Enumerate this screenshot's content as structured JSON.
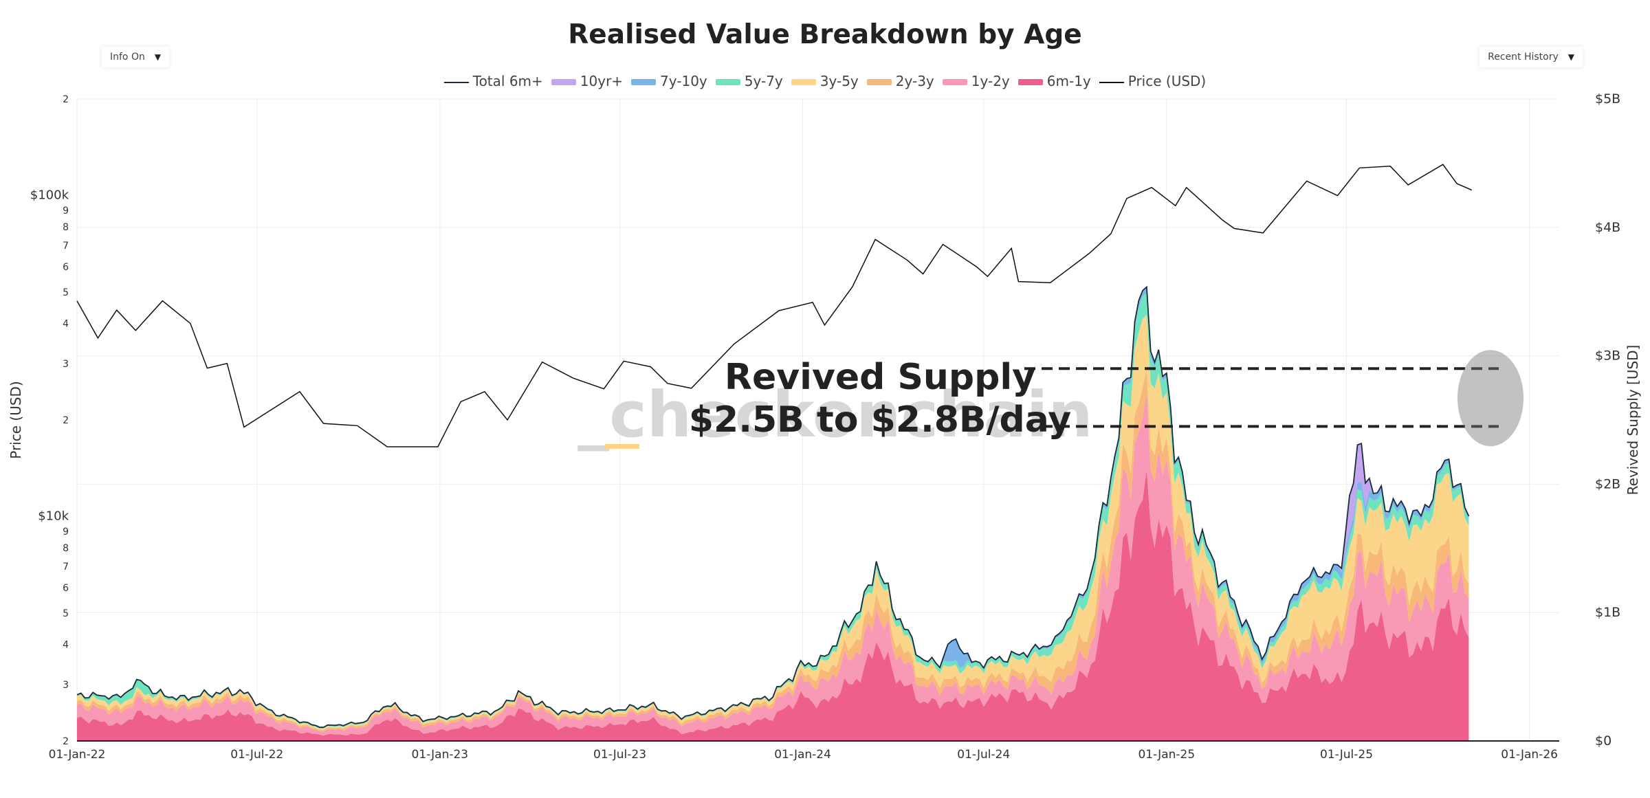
{
  "title": "Realised Value Breakdown by Age",
  "controls": {
    "info_dropdown": "Info On",
    "range_dropdown": "Recent History",
    "arrow": "▼"
  },
  "watermark": "_checkonchain",
  "annotation": {
    "line1": "Revived Supply",
    "line2": "$2.5B to $2.8B/day"
  },
  "colors": {
    "10yr+": "#c3a6f0",
    "7y-10y": "#7ab4ea",
    "5y-7y": "#6fe3c0",
    "3y-5y": "#fbd68a",
    "2y-3y": "#f8b87a",
    "1y-2y": "#f899b6",
    "6m-1y": "#ee5f8c",
    "total": "#1a2a3a",
    "price": "#111111"
  },
  "chart_data": {
    "type": "area",
    "stacked": true,
    "x_ticks": [
      "01-Jan-22",
      "01-Jul-22",
      "01-Jan-23",
      "01-Jul-23",
      "01-Jan-24",
      "01-Jul-24",
      "01-Jan-25",
      "01-Jul-25",
      "01-Jan-26"
    ],
    "x_range": [
      "2022-01-01",
      "2026-01-31"
    ],
    "y_left": {
      "label": "Price (USD)",
      "scale": "log",
      "range": [
        2000,
        200000
      ],
      "tick_labels": [
        {
          "v": 2000,
          "t": "2"
        },
        {
          "v": 3000,
          "t": "3"
        },
        {
          "v": 4000,
          "t": "4"
        },
        {
          "v": 5000,
          "t": "5"
        },
        {
          "v": 6000,
          "t": "6"
        },
        {
          "v": 7000,
          "t": "7"
        },
        {
          "v": 8000,
          "t": "8"
        },
        {
          "v": 9000,
          "t": "9"
        },
        {
          "v": 10000,
          "t": "$10k"
        },
        {
          "v": 20000,
          "t": "2"
        },
        {
          "v": 30000,
          "t": "3"
        },
        {
          "v": 40000,
          "t": "4"
        },
        {
          "v": 50000,
          "t": "5"
        },
        {
          "v": 60000,
          "t": "6"
        },
        {
          "v": 70000,
          "t": "7"
        },
        {
          "v": 80000,
          "t": "8"
        },
        {
          "v": 90000,
          "t": "9"
        },
        {
          "v": 100000,
          "t": "$100k"
        },
        {
          "v": 200000,
          "t": "2"
        }
      ]
    },
    "y_right": {
      "label": "Revived Supply [USD]",
      "range": [
        0,
        5
      ],
      "unit": "B",
      "tick_labels": [
        "$0",
        "$1B",
        "$2B",
        "$3B",
        "$4B",
        "$5B"
      ]
    },
    "legend": [
      "Total 6m+",
      "10yr+",
      "7y-10y",
      "5y-7y",
      "3y-5y",
      "2y-3y",
      "1y-2y",
      "6m-1y",
      "Price (USD)"
    ],
    "price": {
      "name": "Price (USD)",
      "points": [
        [
          "2022-01-01",
          47000
        ],
        [
          "2022-01-22",
          36000
        ],
        [
          "2022-02-10",
          44000
        ],
        [
          "2022-03-01",
          38000
        ],
        [
          "2022-03-28",
          47000
        ],
        [
          "2022-04-25",
          40000
        ],
        [
          "2022-05-12",
          29000
        ],
        [
          "2022-06-01",
          30000
        ],
        [
          "2022-06-18",
          19000
        ],
        [
          "2022-07-10",
          21000
        ],
        [
          "2022-08-13",
          24500
        ],
        [
          "2022-09-06",
          19500
        ],
        [
          "2022-10-10",
          19200
        ],
        [
          "2022-11-09",
          16500
        ],
        [
          "2022-12-30",
          16500
        ],
        [
          "2023-01-22",
          22800
        ],
        [
          "2023-02-15",
          24500
        ],
        [
          "2023-03-10",
          20000
        ],
        [
          "2023-04-14",
          30300
        ],
        [
          "2023-05-15",
          27000
        ],
        [
          "2023-06-15",
          25000
        ],
        [
          "2023-07-05",
          30500
        ],
        [
          "2023-08-01",
          29300
        ],
        [
          "2023-08-18",
          26000
        ],
        [
          "2023-09-11",
          25100
        ],
        [
          "2023-10-24",
          34500
        ],
        [
          "2023-12-08",
          43800
        ],
        [
          "2024-01-11",
          46500
        ],
        [
          "2024-01-23",
          39500
        ],
        [
          "2024-02-20",
          52000
        ],
        [
          "2024-03-14",
          73000
        ],
        [
          "2024-04-15",
          63000
        ],
        [
          "2024-05-01",
          57000
        ],
        [
          "2024-05-21",
          70500
        ],
        [
          "2024-06-24",
          60000
        ],
        [
          "2024-07-05",
          56000
        ],
        [
          "2024-07-29",
          68500
        ],
        [
          "2024-08-05",
          54000
        ],
        [
          "2024-09-06",
          53500
        ],
        [
          "2024-10-15",
          66000
        ],
        [
          "2024-11-06",
          76000
        ],
        [
          "2024-11-22",
          98000
        ],
        [
          "2024-12-17",
          106000
        ],
        [
          "2025-01-10",
          93000
        ],
        [
          "2025-01-21",
          106000
        ],
        [
          "2025-02-26",
          84000
        ],
        [
          "2025-03-10",
          79000
        ],
        [
          "2025-04-08",
          76500
        ],
        [
          "2025-05-22",
          111000
        ],
        [
          "2025-06-22",
          100000
        ],
        [
          "2025-07-14",
          122000
        ],
        [
          "2025-08-14",
          123500
        ],
        [
          "2025-09-01",
          108000
        ],
        [
          "2025-10-06",
          125000
        ],
        [
          "2025-10-20",
          109000
        ],
        [
          "2025-11-04",
          104000
        ]
      ]
    },
    "series": [
      {
        "name": "6m-1y",
        "points": [
          [
            "2022-01-01",
            0.18
          ],
          [
            "2022-02-15",
            0.12
          ],
          [
            "2022-03-01",
            0.22
          ],
          [
            "2022-04-15",
            0.15
          ],
          [
            "2022-05-20",
            0.2
          ],
          [
            "2022-06-15",
            0.22
          ],
          [
            "2022-07-15",
            0.1
          ],
          [
            "2022-09-01",
            0.05
          ],
          [
            "2022-10-15",
            0.05
          ],
          [
            "2022-11-10",
            0.18
          ],
          [
            "2022-12-15",
            0.06
          ],
          [
            "2023-01-20",
            0.1
          ],
          [
            "2023-03-01",
            0.12
          ],
          [
            "2023-03-20",
            0.25
          ],
          [
            "2023-05-01",
            0.1
          ],
          [
            "2023-06-20",
            0.12
          ],
          [
            "2023-08-01",
            0.17
          ],
          [
            "2023-09-01",
            0.06
          ],
          [
            "2023-10-25",
            0.12
          ],
          [
            "2023-12-01",
            0.18
          ],
          [
            "2024-01-01",
            0.35
          ],
          [
            "2024-01-20",
            0.28
          ],
          [
            "2024-03-05",
            0.55
          ],
          [
            "2024-03-15",
            0.8
          ],
          [
            "2024-03-30",
            0.55
          ],
          [
            "2024-05-01",
            0.3
          ],
          [
            "2024-06-20",
            0.3
          ],
          [
            "2024-08-05",
            0.38
          ],
          [
            "2024-09-10",
            0.28
          ],
          [
            "2024-10-15",
            0.55
          ],
          [
            "2024-11-15",
            1.3
          ],
          [
            "2024-12-05",
            1.9
          ],
          [
            "2024-12-30",
            1.6
          ],
          [
            "2025-01-22",
            1.0
          ],
          [
            "2025-02-25",
            0.65
          ],
          [
            "2025-04-08",
            0.32
          ],
          [
            "2025-05-20",
            0.55
          ],
          [
            "2025-06-25",
            0.45
          ],
          [
            "2025-07-15",
            1.0
          ],
          [
            "2025-08-10",
            0.85
          ],
          [
            "2025-09-15",
            0.7
          ],
          [
            "2025-10-10",
            1.05
          ],
          [
            "2025-10-25",
            0.88
          ],
          [
            "2025-11-04",
            0.75
          ]
        ]
      },
      {
        "name": "1y-2y",
        "points": [
          [
            "2022-01-01",
            0.1
          ],
          [
            "2022-03-01",
            0.1
          ],
          [
            "2022-06-15",
            0.1
          ],
          [
            "2022-09-01",
            0.03
          ],
          [
            "2022-11-10",
            0.07
          ],
          [
            "2023-01-20",
            0.05
          ],
          [
            "2023-03-20",
            0.08
          ],
          [
            "2023-08-01",
            0.06
          ],
          [
            "2023-12-01",
            0.1
          ],
          [
            "2024-01-01",
            0.12
          ],
          [
            "2024-03-15",
            0.25
          ],
          [
            "2024-05-01",
            0.12
          ],
          [
            "2024-08-05",
            0.1
          ],
          [
            "2024-10-15",
            0.15
          ],
          [
            "2024-11-15",
            0.45
          ],
          [
            "2024-12-05",
            0.6
          ],
          [
            "2025-01-22",
            0.35
          ],
          [
            "2025-04-08",
            0.12
          ],
          [
            "2025-05-20",
            0.18
          ],
          [
            "2025-07-15",
            0.4
          ],
          [
            "2025-09-15",
            0.3
          ],
          [
            "2025-10-10",
            0.35
          ],
          [
            "2025-11-04",
            0.28
          ]
        ]
      },
      {
        "name": "2y-3y",
        "points": [
          [
            "2022-01-01",
            0.03
          ],
          [
            "2022-06-15",
            0.03
          ],
          [
            "2022-09-01",
            0.01
          ],
          [
            "2022-11-10",
            0.02
          ],
          [
            "2023-08-01",
            0.02
          ],
          [
            "2023-12-01",
            0.03
          ],
          [
            "2024-01-01",
            0.05
          ],
          [
            "2024-03-15",
            0.12
          ],
          [
            "2024-05-01",
            0.06
          ],
          [
            "2024-08-05",
            0.05
          ],
          [
            "2024-11-15",
            0.18
          ],
          [
            "2024-12-05",
            0.22
          ],
          [
            "2025-01-22",
            0.12
          ],
          [
            "2025-04-08",
            0.05
          ],
          [
            "2025-07-15",
            0.15
          ],
          [
            "2025-10-10",
            0.15
          ],
          [
            "2025-11-04",
            0.12
          ]
        ]
      },
      {
        "name": "3y-5y",
        "points": [
          [
            "2022-01-01",
            0.04
          ],
          [
            "2022-06-15",
            0.03
          ],
          [
            "2022-09-01",
            0.01
          ],
          [
            "2023-08-01",
            0.02
          ],
          [
            "2023-12-01",
            0.03
          ],
          [
            "2024-01-01",
            0.05
          ],
          [
            "2024-03-15",
            0.18
          ],
          [
            "2024-05-01",
            0.1
          ],
          [
            "2024-08-05",
            0.1
          ],
          [
            "2024-11-15",
            0.35
          ],
          [
            "2024-12-05",
            0.55
          ],
          [
            "2025-01-22",
            0.25
          ],
          [
            "2025-04-08",
            0.1
          ],
          [
            "2025-05-20",
            0.35
          ],
          [
            "2025-07-15",
            0.3
          ],
          [
            "2025-10-10",
            0.55
          ],
          [
            "2025-11-04",
            0.45
          ]
        ]
      },
      {
        "name": "5y-7y",
        "points": [
          [
            "2022-01-01",
            0.01
          ],
          [
            "2022-03-10",
            0.08
          ],
          [
            "2022-03-20",
            0.02
          ],
          [
            "2022-06-15",
            0.01
          ],
          [
            "2023-12-01",
            0.01
          ],
          [
            "2024-03-15",
            0.06
          ],
          [
            "2024-05-01",
            0.04
          ],
          [
            "2024-08-05",
            0.03
          ],
          [
            "2024-11-15",
            0.12
          ],
          [
            "2024-12-05",
            0.2
          ],
          [
            "2025-01-22",
            0.08
          ],
          [
            "2025-04-08",
            0.03
          ],
          [
            "2025-07-15",
            0.08
          ],
          [
            "2025-10-10",
            0.08
          ],
          [
            "2025-11-04",
            0.05
          ]
        ]
      },
      {
        "name": "7y-10y",
        "points": [
          [
            "2022-01-01",
            0.0
          ],
          [
            "2024-05-20",
            0.0
          ],
          [
            "2024-05-28",
            0.18
          ],
          [
            "2024-06-10",
            0.12
          ],
          [
            "2024-06-20",
            0.0
          ],
          [
            "2024-11-15",
            0.03
          ],
          [
            "2024-12-05",
            0.05
          ],
          [
            "2025-01-22",
            0.02
          ],
          [
            "2025-07-15",
            0.06
          ],
          [
            "2025-10-10",
            0.03
          ],
          [
            "2025-11-04",
            0.02
          ]
        ]
      },
      {
        "name": "10yr+",
        "points": [
          [
            "2022-01-01",
            0.0
          ],
          [
            "2025-06-25",
            0.0
          ],
          [
            "2025-07-05",
            0.3
          ],
          [
            "2025-07-18",
            0.25
          ],
          [
            "2025-07-28",
            0.0
          ],
          [
            "2025-11-04",
            0.0
          ]
        ]
      }
    ]
  }
}
